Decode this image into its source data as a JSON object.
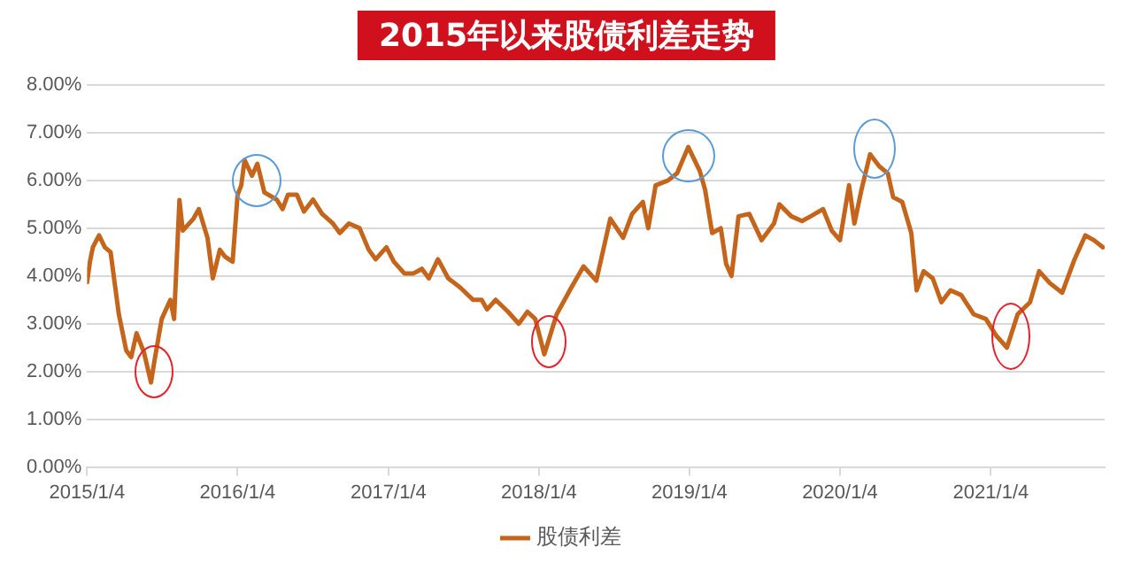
{
  "chart_data": {
    "type": "line",
    "title": "2015年以来股债利差走势",
    "x": [
      "2015-01-04",
      "2015-01-11",
      "2015-01-18",
      "2015-02-02",
      "2015-02-16",
      "2015-03-02",
      "2015-03-22",
      "2015-04-09",
      "2015-04-21",
      "2015-05-04",
      "2015-05-22",
      "2015-06-08",
      "2015-06-16",
      "2015-07-04",
      "2015-07-25",
      "2015-08-03",
      "2015-08-16",
      "2015-08-24",
      "2015-09-19",
      "2015-10-02",
      "2015-10-23",
      "2015-11-05",
      "2015-11-22",
      "2015-12-05",
      "2015-12-23",
      "2016-01-04",
      "2016-01-13",
      "2016-01-21",
      "2016-02-08",
      "2016-02-21",
      "2016-03-09",
      "2016-04-08",
      "2016-04-22",
      "2016-05-05",
      "2016-05-27",
      "2016-06-13",
      "2016-07-05",
      "2016-07-27",
      "2016-08-22",
      "2016-09-08",
      "2016-09-30",
      "2016-10-26",
      "2016-11-17",
      "2016-12-04",
      "2016-12-30",
      "2017-01-17",
      "2017-02-12",
      "2017-03-05",
      "2017-03-26",
      "2017-04-12",
      "2017-05-04",
      "2017-05-29",
      "2017-06-28",
      "2017-07-28",
      "2017-08-18",
      "2017-08-31",
      "2017-09-21",
      "2017-10-21",
      "2017-11-16",
      "2017-12-07",
      "2017-12-26",
      "2018-01-17",
      "2018-02-16",
      "2018-03-23",
      "2018-04-22",
      "2018-05-23",
      "2018-06-26",
      "2018-07-27",
      "2018-08-18",
      "2018-09-13",
      "2018-09-26",
      "2018-10-14",
      "2018-11-13",
      "2018-12-05",
      "2019-01-01",
      "2019-01-29",
      "2019-02-11",
      "2019-02-28",
      "2019-03-21",
      "2019-04-03",
      "2019-04-16",
      "2019-05-03",
      "2019-05-29",
      "2019-06-28",
      "2019-07-28",
      "2019-08-10",
      "2019-09-08",
      "2019-10-04",
      "2019-10-25",
      "2019-11-24",
      "2019-12-15",
      "2020-01-04",
      "2020-01-26",
      "2020-02-08",
      "2020-02-25",
      "2020-03-17",
      "2020-04-08",
      "2020-04-29",
      "2020-05-12",
      "2020-06-03",
      "2020-06-25",
      "2020-07-08",
      "2020-07-25",
      "2020-08-16",
      "2020-09-06",
      "2020-09-28",
      "2020-10-24",
      "2020-11-23",
      "2020-12-23",
      "2021-01-17",
      "2021-02-12",
      "2021-03-10",
      "2021-04-09",
      "2021-05-01",
      "2021-05-27",
      "2021-06-26",
      "2021-07-26",
      "2021-08-21",
      "2021-09-11",
      "2021-10-03"
    ],
    "series": [
      {
        "name": "股债利差",
        "color": "#c5651b",
        "values": [
          3.87,
          4.3,
          4.6,
          4.85,
          4.6,
          4.5,
          3.2,
          2.44,
          2.3,
          2.8,
          2.4,
          1.77,
          2.2,
          3.1,
          3.5,
          3.1,
          5.59,
          4.95,
          5.2,
          5.4,
          4.8,
          3.95,
          4.55,
          4.4,
          4.3,
          5.7,
          5.9,
          6.43,
          6.1,
          6.35,
          5.75,
          5.6,
          5.4,
          5.7,
          5.7,
          5.35,
          5.6,
          5.3,
          5.1,
          4.9,
          5.1,
          5.0,
          4.55,
          4.35,
          4.6,
          4.3,
          4.05,
          4.05,
          4.15,
          3.95,
          4.35,
          3.95,
          3.75,
          3.5,
          3.5,
          3.3,
          3.5,
          3.25,
          3.0,
          3.25,
          3.1,
          2.36,
          3.2,
          3.75,
          4.2,
          3.9,
          5.2,
          4.8,
          5.3,
          5.55,
          5.0,
          5.9,
          6.0,
          6.15,
          6.7,
          6.2,
          5.8,
          4.9,
          5.0,
          4.25,
          4.0,
          5.25,
          5.3,
          4.75,
          5.1,
          5.5,
          5.25,
          5.15,
          5.25,
          5.4,
          4.95,
          4.75,
          5.9,
          5.1,
          5.8,
          6.55,
          6.3,
          6.15,
          5.65,
          5.55,
          4.9,
          3.7,
          4.1,
          3.95,
          3.45,
          3.7,
          3.6,
          3.2,
          3.1,
          2.75,
          2.5,
          3.2,
          3.45,
          4.1,
          3.85,
          3.65,
          4.35,
          4.85,
          4.75,
          4.6
        ]
      }
    ],
    "xlim": [
      "2015-01-04",
      "2021-10-07"
    ],
    "xticks": [
      {
        "value": "2015-01-04",
        "label": "2015/1/4"
      },
      {
        "value": "2016-01-04",
        "label": "2016/1/4"
      },
      {
        "value": "2017-01-04",
        "label": "2017/1/4"
      },
      {
        "value": "2018-01-04",
        "label": "2018/1/4"
      },
      {
        "value": "2019-01-04",
        "label": "2019/1/4"
      },
      {
        "value": "2020-01-04",
        "label": "2020/1/4"
      },
      {
        "value": "2021-01-04",
        "label": "2021/1/4"
      }
    ],
    "ylim": [
      0,
      8
    ],
    "yticks": [
      {
        "value": 0,
        "label": "0.00%"
      },
      {
        "value": 1,
        "label": "1.00%"
      },
      {
        "value": 2,
        "label": "2.00%"
      },
      {
        "value": 3,
        "label": "3.00%"
      },
      {
        "value": 4,
        "label": "4.00%"
      },
      {
        "value": 5,
        "label": "5.00%"
      },
      {
        "value": 6,
        "label": "6.00%"
      },
      {
        "value": 7,
        "label": "7.00%"
      },
      {
        "value": 8,
        "label": "8.00%"
      }
    ],
    "grid": "y",
    "legend": "bottom",
    "marker": "none",
    "line_style": "solid"
  }
}
